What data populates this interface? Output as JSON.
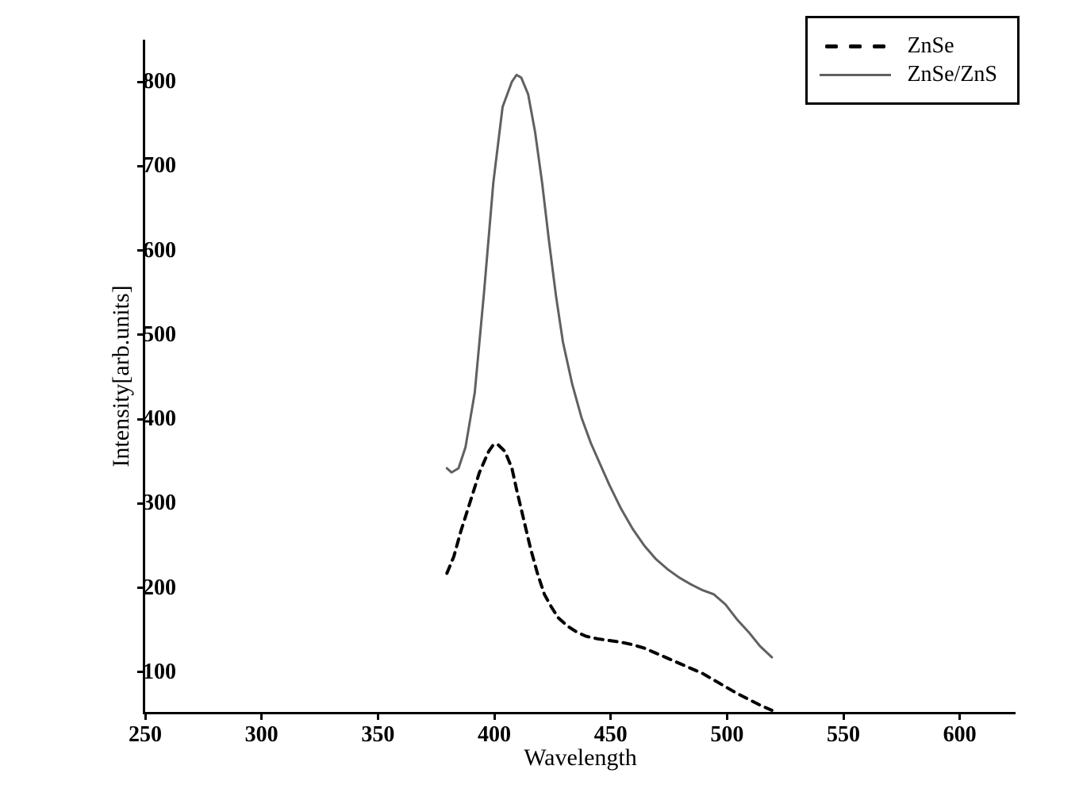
{
  "chart": {
    "type": "line",
    "xlabel": "Wavelength",
    "ylabel": "Intensity[arb.units]",
    "label_fontsize": 30,
    "tick_fontsize": 28,
    "background_color": "#ffffff",
    "axis_color": "#000000",
    "xlim": [
      250,
      625
    ],
    "xtick_step": 50,
    "xticks": [
      250,
      300,
      350,
      400,
      450,
      500,
      550,
      600
    ],
    "ylim": [
      50,
      850
    ],
    "ytick_step": 100,
    "yticks": [
      100,
      200,
      300,
      400,
      500,
      600,
      700,
      800
    ],
    "legend": {
      "position": "top-right",
      "border_color": "#000000",
      "items": [
        {
          "label": "ZnSe",
          "style": "dashed",
          "color": "#000000"
        },
        {
          "label": "ZnSe/ZnS",
          "style": "solid",
          "color": "#606060"
        }
      ]
    },
    "series": [
      {
        "name": "ZnSe",
        "style": "dashed",
        "color": "#000000",
        "line_width": 4,
        "dash_pattern": "10,8",
        "x": [
          380,
          383,
          386,
          390,
          394,
          398,
          400,
          402,
          405,
          408,
          410,
          413,
          416,
          419,
          422,
          425,
          428,
          432,
          436,
          440,
          445,
          450,
          455,
          460,
          465,
          470,
          475,
          480,
          485,
          490,
          495,
          500,
          505,
          510,
          515,
          520
        ],
        "y": [
          215,
          235,
          265,
          300,
          335,
          360,
          368,
          368,
          360,
          340,
          315,
          280,
          245,
          215,
          190,
          175,
          162,
          152,
          145,
          140,
          137,
          135,
          133,
          130,
          126,
          120,
          114,
          108,
          102,
          96,
          88,
          80,
          72,
          65,
          58,
          52
        ]
      },
      {
        "name": "ZnSe/ZnS",
        "style": "solid",
        "color": "#606060",
        "line_width": 3,
        "x": [
          380,
          382,
          385,
          388,
          392,
          396,
          400,
          404,
          408,
          410,
          412,
          415,
          418,
          421,
          424,
          427,
          430,
          434,
          438,
          442,
          446,
          450,
          455,
          460,
          465,
          470,
          475,
          480,
          485,
          490,
          495,
          500,
          505,
          510,
          515,
          520
        ],
        "y": [
          340,
          335,
          340,
          365,
          430,
          550,
          680,
          770,
          800,
          808,
          805,
          785,
          740,
          680,
          610,
          545,
          490,
          440,
          400,
          370,
          345,
          320,
          292,
          268,
          248,
          232,
          220,
          210,
          202,
          195,
          190,
          178,
          160,
          145,
          128,
          115
        ]
      }
    ]
  }
}
